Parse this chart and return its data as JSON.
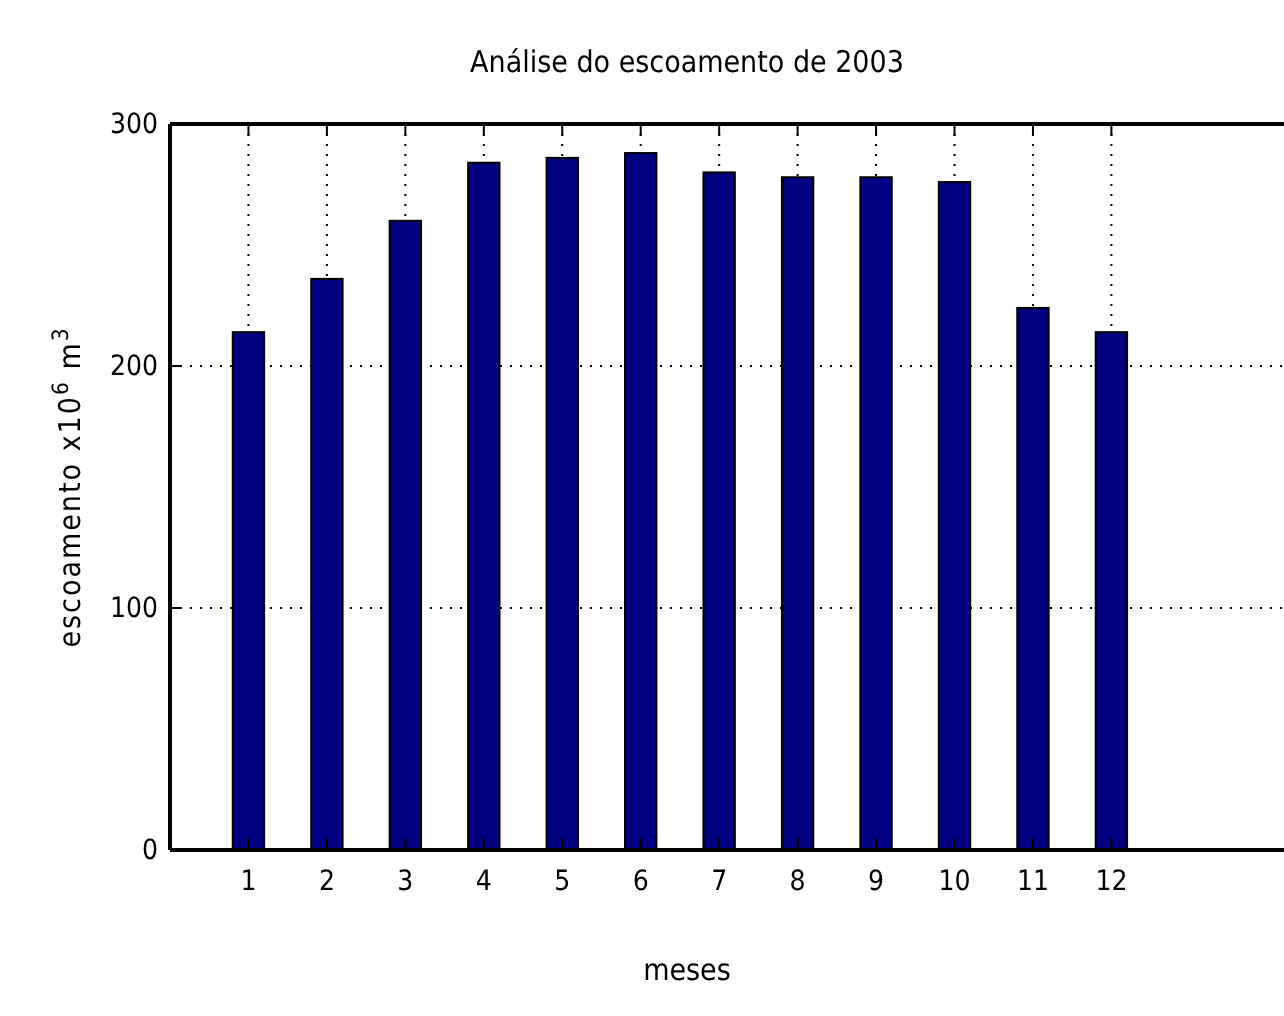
{
  "chart_data": {
    "type": "bar",
    "title": "Análise do escoamento de 2003",
    "xlabel": "meses",
    "ylabel": "escoamento x10$^{6}$ m$^{3}$",
    "x": [
      1,
      2,
      3,
      4,
      5,
      6,
      7,
      8,
      9,
      10,
      11,
      12
    ],
    "values": [
      214,
      236,
      260,
      284,
      286,
      288,
      280,
      278,
      278,
      276,
      224,
      214
    ],
    "color": "#000080",
    "xlim": [
      0,
      14.2
    ],
    "xticks": [
      1,
      2,
      3,
      4,
      5,
      6,
      7,
      8,
      9,
      10,
      11,
      12
    ],
    "ylim": [
      0,
      300
    ],
    "yticks": [
      0,
      100,
      200,
      300
    ],
    "grid": true
  }
}
